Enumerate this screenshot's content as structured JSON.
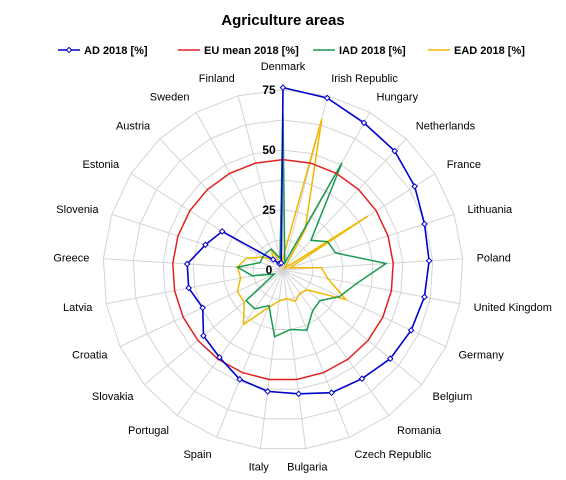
{
  "chart_data": {
    "type": "radar",
    "title": "Agriculture areas",
    "categories": [
      "Denmark",
      "Irish Republic",
      "Hungary",
      "Netherlands",
      "France",
      "Lithuania",
      "Poland",
      "United Kingdom",
      "Germany",
      "Belgium",
      "Romania",
      "Czech Republic",
      "Bulgaria",
      "Italy",
      "Spain",
      "Portugal",
      "Slovakia",
      "Croatia",
      "Latvia",
      "Greece",
      "Slovenia",
      "Estonia",
      "Austria",
      "Sweden",
      "Finland"
    ],
    "ticks": [
      0,
      25,
      50,
      75
    ],
    "rmax": 75,
    "grid": true,
    "legend_position": "top",
    "series": [
      {
        "name": "AD 2018 [%]",
        "color": "#0000cc",
        "marker": "diamond",
        "values": [
          76,
          74,
          70,
          68,
          65,
          62,
          61,
          60,
          59,
          58,
          56,
          55,
          52,
          51,
          49,
          45,
          43,
          37,
          40,
          40,
          34,
          30,
          6,
          3,
          3
        ]
      },
      {
        "name": "EU mean 2018 [%]",
        "color": "#e02020",
        "marker": "none",
        "values": [
          46,
          46,
          46,
          46,
          46,
          46,
          46,
          46,
          46,
          46,
          46,
          46,
          46,
          46,
          46,
          46,
          46,
          46,
          46,
          46,
          46,
          46,
          46,
          46,
          46
        ]
      },
      {
        "name": "IAD 2018 [%]",
        "color": "#1a9a50",
        "marker": "none",
        "values": [
          65,
          3,
          51,
          17,
          22,
          23,
          43,
          31,
          26,
          20,
          21,
          27,
          25,
          28,
          16,
          20,
          20,
          4,
          13,
          19,
          10,
          10,
          10,
          10,
          5
        ]
      },
      {
        "name": "EAD 2018 [%]",
        "color": "#f0b800",
        "marker": "none",
        "values": [
          5,
          65,
          19,
          1,
          42,
          3,
          16,
          19,
          29,
          13,
          12,
          14,
          12,
          13,
          17,
          28,
          21,
          21,
          18,
          19,
          16,
          10,
          6,
          10,
          2
        ]
      }
    ]
  }
}
